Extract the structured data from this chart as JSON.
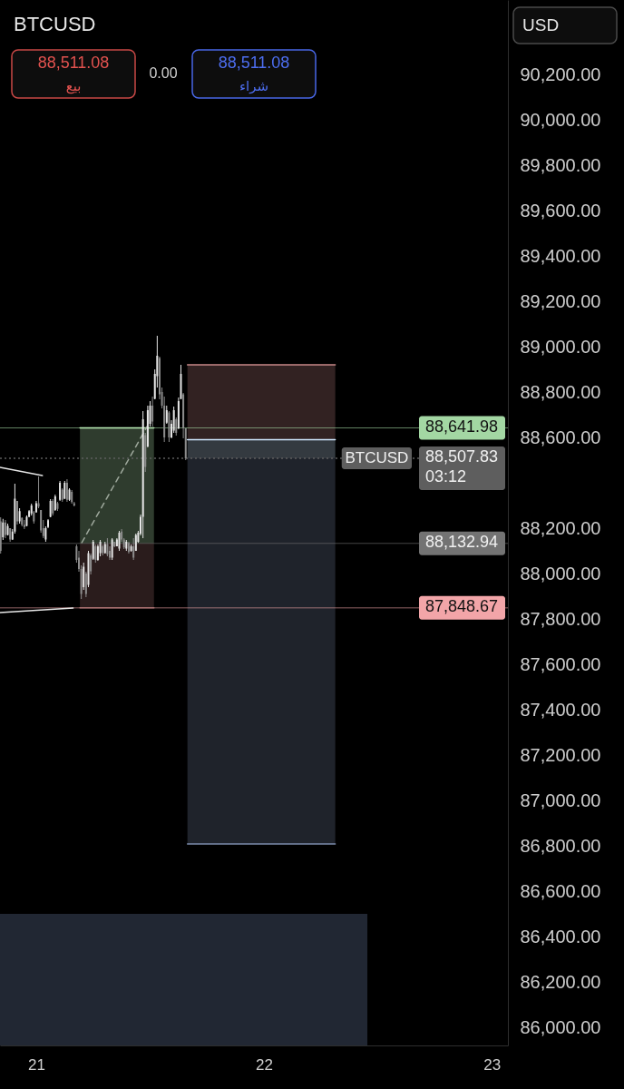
{
  "chart_data": {
    "type": "candlestick",
    "title": "BTCUSD",
    "xlim": [
      20.841,
      23.071
    ],
    "xticks": [
      21,
      22,
      23
    ],
    "ylim": [
      85920,
      90528
    ],
    "yticks": [
      {
        "value": 86000,
        "label": "86,000.00"
      },
      {
        "value": 86200,
        "label": "86,200.00"
      },
      {
        "value": 86400,
        "label": "86,400.00"
      },
      {
        "value": 86600,
        "label": "86,600.00"
      },
      {
        "value": 86800,
        "label": "86,800.00"
      },
      {
        "value": 87000,
        "label": "87,000.00"
      },
      {
        "value": 87200,
        "label": "87,200.00"
      },
      {
        "value": 87400,
        "label": "87,400.00"
      },
      {
        "value": 87600,
        "label": "87,600.00"
      },
      {
        "value": 87800,
        "label": "87,800.00"
      },
      {
        "value": 88000,
        "label": "88,000.00"
      },
      {
        "value": 88200,
        "label": "88,200.00"
      },
      {
        "value": 88600,
        "label": "88,600.00"
      },
      {
        "value": 88800,
        "label": "88,800.00"
      },
      {
        "value": 89000,
        "label": "89,000.00"
      },
      {
        "value": 89200,
        "label": "89,200.00"
      },
      {
        "value": 89400,
        "label": "89,400.00"
      },
      {
        "value": 89600,
        "label": "89,600.00"
      },
      {
        "value": 89800,
        "label": "89,800.00"
      },
      {
        "value": 90000,
        "label": "90,000.00"
      },
      {
        "value": 90200,
        "label": "90,200.00"
      }
    ],
    "series": [
      {
        "type": "area",
        "color": "#212733",
        "x": [
          20.841,
          22.454
        ],
        "values": [
          86500,
          86500
        ]
      },
      {
        "type": "line",
        "color": "#bcf0b8",
        "x": [
          21.192,
          21.517
        ],
        "values": [
          88641.98,
          88641.98
        ],
        "lower": [
          88132.94,
          88132.94
        ],
        "upper": [
          88641.98,
          88641.98
        ]
      },
      {
        "type": "line",
        "color": "#a87070",
        "x": [
          21.192,
          21.517
        ],
        "values": [
          87848.67,
          87848.67
        ],
        "lower": [
          87848.67,
          87848.67
        ],
        "upper": [
          88132.94,
          88132.94
        ]
      },
      {
        "type": "line",
        "color": "#c88888",
        "x": [
          21.664,
          22.313
        ],
        "values": [
          88920,
          88920
        ],
        "lower": [
          88590,
          88590
        ],
        "upper": [
          88920,
          88920
        ]
      },
      {
        "type": "line",
        "color": "#d0e8ff",
        "x": [
          21.664,
          22.313
        ],
        "values": [
          88590,
          88590
        ],
        "lower": [
          88507.83,
          88507.83
        ],
        "upper": [
          88590,
          88590
        ]
      },
      {
        "type": "line",
        "color": "#7c8cac",
        "x": [
          21.664,
          22.313
        ],
        "values": [
          86808,
          86808
        ],
        "lower": [
          86808,
          86808
        ],
        "upper": [
          88507.83,
          88507.83
        ]
      },
      {
        "type": "line",
        "color": "#e6e6e6",
        "x": [
          20.841,
          21.027
        ],
        "values": [
          88468,
          88432
        ]
      },
      {
        "type": "line",
        "color": "#e6e6e6",
        "x": [
          20.841,
          21.162
        ],
        "values": [
          87828,
          87848
        ]
      },
      {
        "type": "line",
        "color": "#9ea89c",
        "line_style": "dashed",
        "x": [
          21.2,
          21.488
        ],
        "values": [
          88136,
          88650
        ]
      },
      {
        "color": "#e6e6e6",
        "x": [
          20.8542,
          20.875,
          20.8958,
          20.9063,
          20.9271,
          20.9583,
          20.9688,
          20.9792,
          21,
          21.0417,
          21.0521,
          21.0625,
          21.0833,
          21.1042,
          21.125,
          21.1458,
          21.2083,
          21.2292,
          21.25,
          21.2708,
          21.2813,
          21.3021,
          21.3333,
          21.3542,
          21.3646,
          21.3958,
          21.4167,
          21.4375,
          21.4479,
          21.4583,
          21.4688,
          21.4896,
          21.5,
          21.5208,
          21.5313,
          21.5729,
          21.5938,
          21.6042,
          21.625,
          21.6354
        ],
        "ohlc": [
          [
            88160,
            88241,
            88148,
            88225
          ],
          [
            88170,
            88220,
            88168,
            88210
          ],
          [
            88150,
            88196,
            88148,
            88185
          ],
          [
            88185,
            88396,
            88176,
            88330
          ],
          [
            88230,
            88288,
            88220,
            88275
          ],
          [
            88210,
            88256,
            88208,
            88250
          ],
          [
            88250,
            88280,
            88248,
            88275
          ],
          [
            88265,
            88308,
            88256,
            88300
          ],
          [
            88270,
            88320,
            88268,
            88310
          ],
          [
            88150,
            88208,
            88140,
            88200
          ],
          [
            88205,
            88240,
            88200,
            88235
          ],
          [
            88250,
            88328,
            88248,
            88320
          ],
          [
            88280,
            88348,
            88276,
            88340
          ],
          [
            88325,
            88408,
            88320,
            88400
          ],
          [
            88330,
            88408,
            88328,
            88400
          ],
          [
            88325,
            88376,
            88320,
            88370
          ],
          [
            87940,
            88048,
            87928,
            88030
          ],
          [
            87950,
            88100,
            87940,
            88090
          ],
          [
            88065,
            88148,
            88060,
            88140
          ],
          [
            88060,
            88128,
            88056,
            88120
          ],
          [
            88090,
            88148,
            88076,
            88140
          ],
          [
            88090,
            88140,
            88088,
            88130
          ],
          [
            88070,
            88156,
            88060,
            88150
          ],
          [
            88120,
            88156,
            88120,
            88150
          ],
          [
            88110,
            88188,
            88100,
            88180
          ],
          [
            88110,
            88148,
            88100,
            88140
          ],
          [
            88100,
            88128,
            88096,
            88120
          ],
          [
            88100,
            88176,
            88100,
            88170
          ],
          [
            88140,
            88188,
            88136,
            88180
          ],
          [
            88175,
            88260,
            88168,
            88250
          ],
          [
            88250,
            88716,
            88156,
            88680
          ],
          [
            88560,
            88740,
            88556,
            88720
          ],
          [
            88660,
            88760,
            88648,
            88740
          ],
          [
            88770,
            88900,
            88768,
            88880
          ],
          [
            88870,
            89048,
            88820,
            88960
          ],
          [
            88665,
            88740,
            88660,
            88720
          ],
          [
            88600,
            88676,
            88596,
            88660
          ],
          [
            88630,
            88736,
            88620,
            88720
          ],
          [
            88640,
            88776,
            88636,
            88760
          ],
          [
            88770,
            88920,
            88768,
            88880
          ]
        ]
      },
      {
        "color": "#8c8c8c",
        "x": [
          20.8438,
          20.8646,
          20.8854,
          20.9167,
          20.9375,
          20.9479,
          20.9896,
          21.0104,
          21.0208,
          21.0313,
          21.0729,
          21.0938,
          21.1146,
          21.1354,
          21.1563,
          21.1667,
          21.1771,
          21.1875,
          21.1979,
          21.2188,
          21.2396,
          21.2604,
          21.2917,
          21.3125,
          21.3229,
          21.3438,
          21.375,
          21.3854,
          21.4063,
          21.4271,
          21.4792,
          21.5104,
          21.5417,
          21.5521,
          21.5625,
          21.5833,
          21.6146,
          21.6458,
          21.6563
        ],
        "ohlc": [
          [
            88230,
            88248,
            88088,
            88100
          ],
          [
            88225,
            88236,
            88156,
            88170
          ],
          [
            88200,
            88200,
            88140,
            88150
          ],
          [
            88320,
            88320,
            88216,
            88230
          ],
          [
            88245,
            88248,
            88208,
            88215
          ],
          [
            88215,
            88236,
            88196,
            88205
          ],
          [
            88270,
            88276,
            88220,
            88230
          ],
          [
            88310,
            88428,
            88288,
            88295
          ],
          [
            88280,
            88280,
            88180,
            88190
          ],
          [
            88200,
            88236,
            88156,
            88165
          ],
          [
            88320,
            88328,
            88256,
            88265
          ],
          [
            88310,
            88316,
            88276,
            88285
          ],
          [
            88370,
            88376,
            88316,
            88325
          ],
          [
            88400,
            88416,
            88316,
            88325
          ],
          [
            88360,
            88368,
            88308,
            88315
          ],
          [
            88310,
            88316,
            88296,
            88300
          ],
          [
            88120,
            88128,
            88048,
            88060
          ],
          [
            88070,
            88100,
            88008,
            88020
          ],
          [
            88020,
            88036,
            87888,
            87910
          ],
          [
            88000,
            88008,
            87896,
            87910
          ],
          [
            88080,
            88088,
            87996,
            88010
          ],
          [
            88120,
            88128,
            88048,
            88060
          ],
          [
            88120,
            88128,
            88080,
            88090
          ],
          [
            88130,
            88156,
            88076,
            88085
          ],
          [
            88100,
            88120,
            88060,
            88070
          ],
          [
            88140,
            88140,
            88116,
            88120
          ],
          [
            88185,
            88196,
            88140,
            88150
          ],
          [
            88150,
            88156,
            88108,
            88115
          ],
          [
            88135,
            88140,
            88088,
            88095
          ],
          [
            88120,
            88156,
            88060,
            88070
          ],
          [
            88610,
            88620,
            88448,
            88470
          ],
          [
            88740,
            88780,
            88648,
            88670
          ],
          [
            88950,
            88956,
            88768,
            88790
          ],
          [
            88800,
            88820,
            88728,
            88740
          ],
          [
            88740,
            88780,
            88580,
            88600
          ],
          [
            88710,
            88716,
            88580,
            88600
          ],
          [
            88680,
            88688,
            88608,
            88620
          ],
          [
            88790,
            88796,
            88596,
            88640
          ],
          [
            88640,
            88640,
            88500,
            88507.83
          ]
        ]
      }
    ],
    "ref_lines": [
      {
        "axis": "y",
        "value": 88641.98,
        "label": "88,641.98",
        "color": "#a3d7a3"
      },
      {
        "axis": "y",
        "value": 88507.83,
        "label": "88,507.83\n03:12",
        "color": "#5e5e5e",
        "line_style": "dotted"
      },
      {
        "axis": "y",
        "value": 88132.94,
        "label": "88,132.94",
        "color": "#737373"
      },
      {
        "axis": "y",
        "value": 87848.67,
        "label": "87,848.67",
        "color": "#f2a5a8"
      }
    ],
    "annotations": [
      "BTCUSD",
      "88,511.08",
      "بيع",
      "0.00",
      "88,511.08",
      "شراء",
      "USD"
    ]
  }
}
